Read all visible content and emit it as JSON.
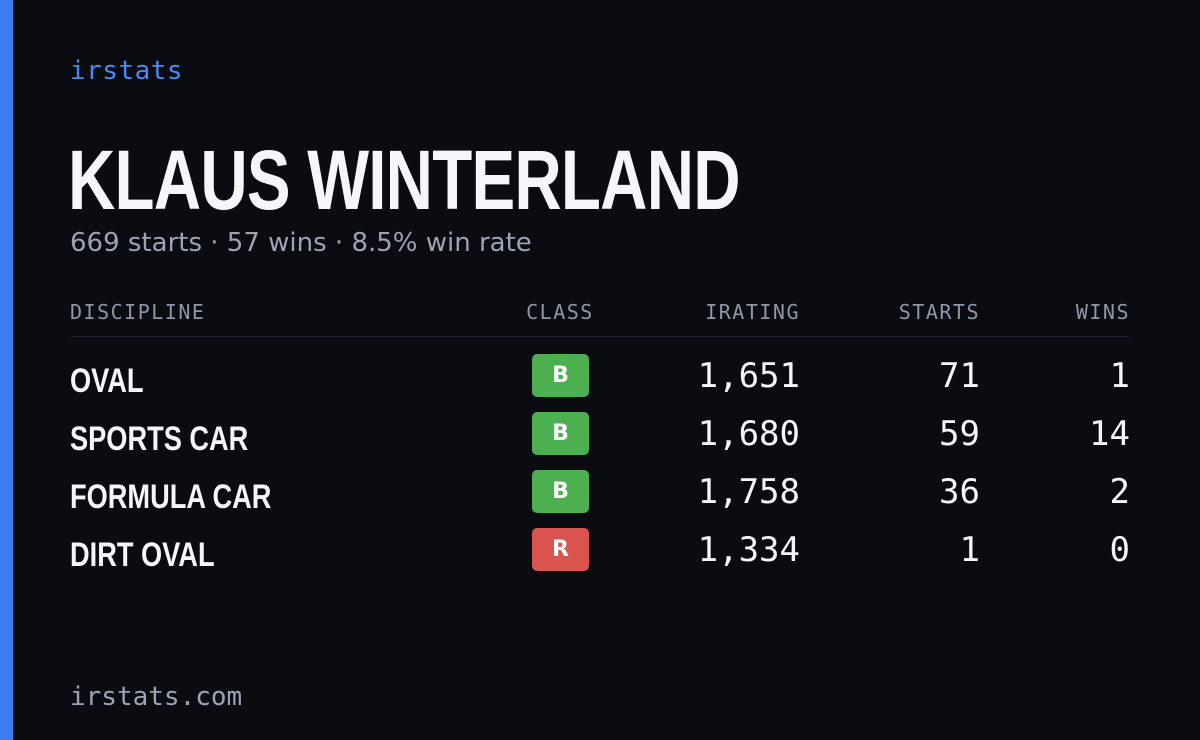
{
  "brand": "irstats",
  "driver": {
    "name": "KLAUS WINTERLAND",
    "summary": "669 starts · 57 wins · 8.5% win rate"
  },
  "table": {
    "headers": {
      "discipline": "DISCIPLINE",
      "class": "CLASS",
      "irating": "IRATING",
      "starts": "STARTS",
      "wins": "WINS"
    },
    "rows": [
      {
        "discipline": "OVAL",
        "class": "B",
        "irating": "1,651",
        "starts": "71",
        "wins": "1"
      },
      {
        "discipline": "SPORTS CAR",
        "class": "B",
        "irating": "1,680",
        "starts": "59",
        "wins": "14"
      },
      {
        "discipline": "FORMULA CAR",
        "class": "B",
        "irating": "1,758",
        "starts": "36",
        "wins": "2"
      },
      {
        "discipline": "DIRT OVAL",
        "class": "R",
        "irating": "1,334",
        "starts": "1",
        "wins": "0"
      }
    ]
  },
  "footer": "irstats.com",
  "colors": {
    "accent": "#3d7ff0",
    "brand_text": "#4a8af4",
    "class_b": "#4caf50",
    "class_r": "#d9534f",
    "background": "#0a0c12"
  }
}
